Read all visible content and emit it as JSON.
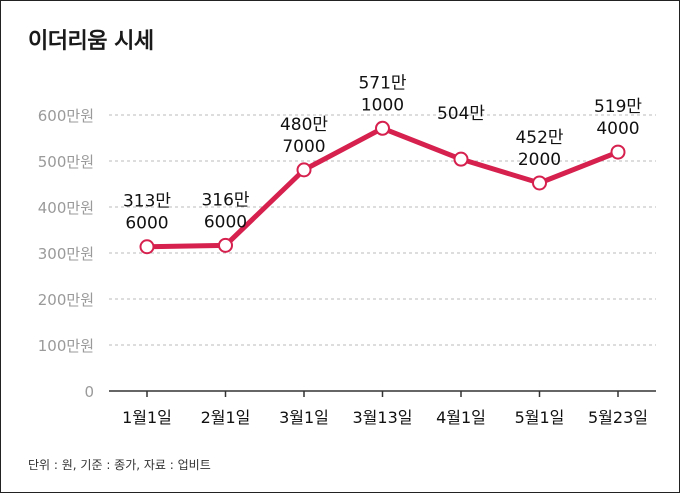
{
  "title": "이더리움 시세",
  "footnote": "단위 : 원, 기준 : 종가, 자료 : 업비트",
  "colors": {
    "line": "#d6204e",
    "marker_fill": "#ffffff",
    "grid": "#bbbbbb",
    "axis": "#333333",
    "tick_text": "#9a9a9a",
    "label_text": "#111111"
  },
  "chart_data": {
    "type": "line",
    "title": "이더리움 시세",
    "xlabel": "",
    "ylabel": "",
    "ylim": [
      0,
      6000000
    ],
    "grid": true,
    "y_ticks": [
      {
        "value": 0,
        "label": "0"
      },
      {
        "value": 1000000,
        "label": "100만원"
      },
      {
        "value": 2000000,
        "label": "200만원"
      },
      {
        "value": 3000000,
        "label": "300만원"
      },
      {
        "value": 4000000,
        "label": "400만원"
      },
      {
        "value": 5000000,
        "label": "500만원"
      },
      {
        "value": 6000000,
        "label": "600만원"
      }
    ],
    "categories": [
      "1월1일",
      "2월1일",
      "3월1일",
      "3월13일",
      "4월1일",
      "5월1일",
      "5월23일"
    ],
    "series": [
      {
        "name": "이더리움 시세",
        "values": [
          3136000,
          3166000,
          4807000,
          5711000,
          5040000,
          4522000,
          5194000
        ],
        "labels": [
          [
            "313만",
            "6000"
          ],
          [
            "316만",
            "6000"
          ],
          [
            "480만",
            "7000"
          ],
          [
            "571만",
            "1000"
          ],
          [
            "504만",
            ""
          ],
          [
            "452만",
            "2000"
          ],
          [
            "519만",
            "4000"
          ]
        ]
      }
    ]
  }
}
